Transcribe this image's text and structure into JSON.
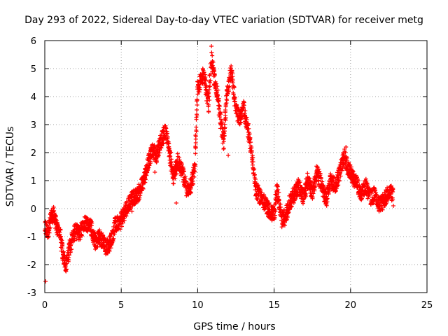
{
  "chart_data": {
    "type": "scatter",
    "title": "Day 293 of 2022, Sidereal Day-to-day VTEC variation (SDTVAR) for receiver metg",
    "xlabel": "GPS time / hours",
    "ylabel": "SDTVAR / TECUs",
    "xlim": [
      0,
      25
    ],
    "ylim": [
      -3,
      6
    ],
    "xticks": [
      0,
      5,
      10,
      15,
      20,
      25
    ],
    "yticks": [
      -3,
      -2,
      -1,
      0,
      1,
      2,
      3,
      4,
      5,
      6
    ],
    "xtick_labels": [
      "0",
      "5",
      "10",
      "15",
      "20",
      "25"
    ],
    "ytick_labels": [
      "-3",
      "-2",
      "-1",
      "0",
      "1",
      "2",
      "3",
      "4",
      "5",
      "6"
    ],
    "grid": true,
    "marker": "+",
    "series": [
      {
        "name": "SDTVAR",
        "color": "#ff0000",
        "trend": [
          [
            0.0,
            -0.6
          ],
          [
            0.2,
            -0.9
          ],
          [
            0.4,
            -0.3
          ],
          [
            0.6,
            -0.2
          ],
          [
            0.8,
            -0.7
          ],
          [
            1.0,
            -0.9
          ],
          [
            1.2,
            -1.7
          ],
          [
            1.4,
            -2.0
          ],
          [
            1.6,
            -1.5
          ],
          [
            1.8,
            -1.0
          ],
          [
            2.0,
            -0.8
          ],
          [
            2.3,
            -0.9
          ],
          [
            2.6,
            -0.5
          ],
          [
            3.0,
            -0.6
          ],
          [
            3.3,
            -1.2
          ],
          [
            3.6,
            -1.0
          ],
          [
            4.0,
            -1.4
          ],
          [
            4.3,
            -1.2
          ],
          [
            4.6,
            -0.6
          ],
          [
            4.9,
            -0.5
          ],
          [
            5.2,
            -0.2
          ],
          [
            5.5,
            0.2
          ],
          [
            5.8,
            0.4
          ],
          [
            6.1,
            0.5
          ],
          [
            6.4,
            0.9
          ],
          [
            6.7,
            1.5
          ],
          [
            7.0,
            2.1
          ],
          [
            7.3,
            1.9
          ],
          [
            7.6,
            2.4
          ],
          [
            7.9,
            2.8
          ],
          [
            8.1,
            2.2
          ],
          [
            8.4,
            1.1
          ],
          [
            8.7,
            1.7
          ],
          [
            9.0,
            1.3
          ],
          [
            9.3,
            0.6
          ],
          [
            9.6,
            0.9
          ],
          [
            9.8,
            1.4
          ],
          [
            10.0,
            4.3
          ],
          [
            10.4,
            4.8
          ],
          [
            10.7,
            3.7
          ],
          [
            10.9,
            5.4
          ],
          [
            11.1,
            4.6
          ],
          [
            11.3,
            4.1
          ],
          [
            11.5,
            3.1
          ],
          [
            11.7,
            2.4
          ],
          [
            11.9,
            4.0
          ],
          [
            12.2,
            4.9
          ],
          [
            12.5,
            3.5
          ],
          [
            12.8,
            3.2
          ],
          [
            13.0,
            3.6
          ],
          [
            13.3,
            2.8
          ],
          [
            13.6,
            1.7
          ],
          [
            13.8,
            0.7
          ],
          [
            14.1,
            0.4
          ],
          [
            14.4,
            0.2
          ],
          [
            14.7,
            -0.1
          ],
          [
            15.0,
            -0.2
          ],
          [
            15.2,
            0.7
          ],
          [
            15.5,
            -0.4
          ],
          [
            15.8,
            -0.2
          ],
          [
            16.0,
            0.2
          ],
          [
            16.3,
            0.5
          ],
          [
            16.6,
            0.8
          ],
          [
            16.9,
            0.4
          ],
          [
            17.2,
            1.0
          ],
          [
            17.5,
            0.6
          ],
          [
            17.8,
            1.3
          ],
          [
            18.1,
            0.9
          ],
          [
            18.4,
            0.3
          ],
          [
            18.7,
            1.0
          ],
          [
            19.0,
            0.8
          ],
          [
            19.3,
            1.3
          ],
          [
            19.6,
            1.9
          ],
          [
            19.8,
            1.5
          ],
          [
            20.1,
            1.2
          ],
          [
            20.4,
            0.9
          ],
          [
            20.7,
            0.5
          ],
          [
            21.0,
            0.8
          ],
          [
            21.3,
            0.4
          ],
          [
            21.6,
            0.5
          ],
          [
            21.9,
            0.1
          ],
          [
            22.2,
            0.3
          ],
          [
            22.5,
            0.6
          ],
          [
            22.8,
            0.5
          ]
        ],
        "outliers": [
          [
            0.05,
            -2.6
          ],
          [
            10.9,
            5.8
          ],
          [
            12.0,
            1.9
          ],
          [
            13.0,
            3.7
          ],
          [
            15.7,
            -0.6
          ],
          [
            22.8,
            0.1
          ],
          [
            8.6,
            0.2
          ],
          [
            7.2,
            1.3
          ],
          [
            5.7,
            -0.1
          ],
          [
            19.7,
            2.2
          ]
        ]
      }
    ]
  }
}
